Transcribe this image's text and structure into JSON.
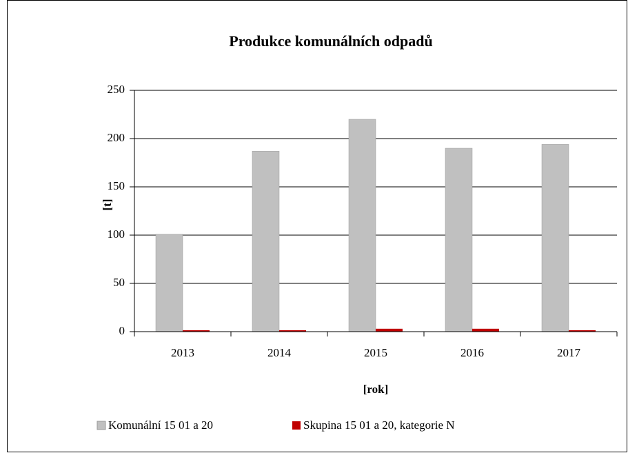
{
  "chart_data": {
    "type": "bar",
    "title": "Produkce komunálních  odpadů",
    "x_label": "[rok]",
    "y_label": "[t]",
    "categories": [
      "2013",
      "2014",
      "2015",
      "2016",
      "2017"
    ],
    "series": [
      {
        "name": "Komunální 15 01 a 20",
        "color": "#c0c0c0",
        "values": [
          101,
          187,
          220,
          190,
          194
        ]
      },
      {
        "name": "Skupina 15 01 a 20, kategorie N",
        "color": "#c00000",
        "values": [
          1.5,
          1.5,
          3,
          3,
          1.5
        ]
      }
    ],
    "ylim": [
      0,
      250
    ],
    "yticks": [
      0,
      50,
      100,
      150,
      200,
      250
    ],
    "grid": true,
    "legend": "bottom"
  }
}
